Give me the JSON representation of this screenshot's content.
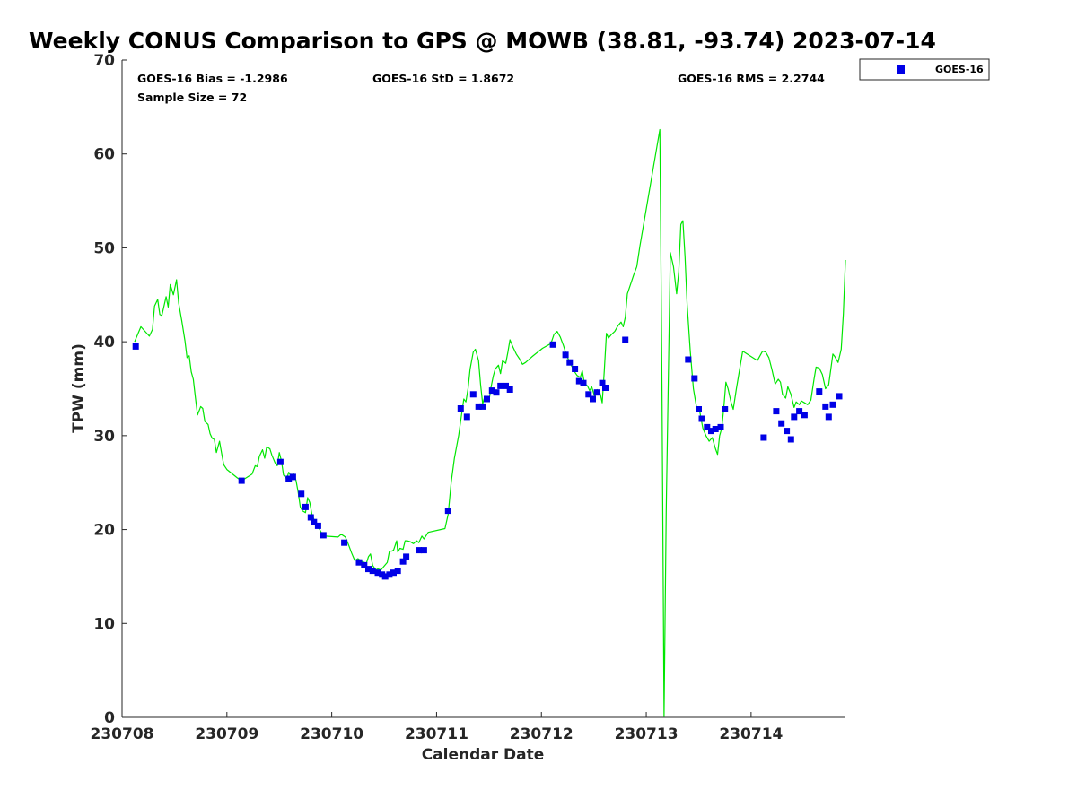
{
  "chart_data": {
    "type": "scatter",
    "title": "Weekly CONUS Comparison to GPS @ MOWB (38.81, -93.74) 2023-07-14",
    "xlabel": "Calendar Date",
    "ylabel": "TPW (mm)",
    "ylim": [
      0,
      70
    ],
    "xlim": [
      0,
      6.9
    ],
    "yticks": [
      0,
      10,
      20,
      30,
      40,
      50,
      60,
      70
    ],
    "xticks": [
      {
        "x": 0,
        "label": "230708"
      },
      {
        "x": 1,
        "label": "230709"
      },
      {
        "x": 2,
        "label": "230710"
      },
      {
        "x": 3,
        "label": "230711"
      },
      {
        "x": 4,
        "label": "230712"
      },
      {
        "x": 5,
        "label": "230713"
      },
      {
        "x": 6,
        "label": "230714"
      }
    ],
    "stats": {
      "bias": "GOES-16 Bias = -1.2986",
      "std": "GOES-16 StD = 1.8672",
      "rms": "GOES-16 RMS = 2.2744",
      "sample": "Sample Size = 72"
    },
    "legend_position": "top-right, outside plot",
    "grid": false,
    "series": [
      {
        "name": "GOES-16",
        "kind": "scatter",
        "color": "#0000e6",
        "points": [
          [
            0.13,
            39.5
          ],
          [
            1.14,
            25.2
          ],
          [
            1.51,
            27.2
          ],
          [
            1.59,
            25.4
          ],
          [
            1.63,
            25.6
          ],
          [
            1.71,
            23.8
          ],
          [
            1.75,
            22.4
          ],
          [
            1.8,
            21.3
          ],
          [
            1.83,
            20.8
          ],
          [
            1.87,
            20.4
          ],
          [
            1.92,
            19.4
          ],
          [
            2.12,
            18.6
          ],
          [
            2.26,
            16.5
          ],
          [
            2.31,
            16.2
          ],
          [
            2.35,
            15.8
          ],
          [
            2.39,
            15.6
          ],
          [
            2.44,
            15.4
          ],
          [
            2.48,
            15.2
          ],
          [
            2.51,
            15.0
          ],
          [
            2.55,
            15.2
          ],
          [
            2.59,
            15.4
          ],
          [
            2.63,
            15.6
          ],
          [
            2.68,
            16.6
          ],
          [
            2.71,
            17.1
          ],
          [
            2.83,
            17.8
          ],
          [
            2.88,
            17.8
          ],
          [
            3.11,
            22.0
          ],
          [
            3.23,
            32.9
          ],
          [
            3.29,
            32.0
          ],
          [
            3.35,
            34.4
          ],
          [
            3.4,
            33.1
          ],
          [
            3.44,
            33.1
          ],
          [
            3.48,
            33.9
          ],
          [
            3.53,
            34.8
          ],
          [
            3.57,
            34.6
          ],
          [
            3.61,
            35.3
          ],
          [
            3.66,
            35.3
          ],
          [
            3.7,
            34.9
          ],
          [
            4.11,
            39.7
          ],
          [
            4.23,
            38.6
          ],
          [
            4.27,
            37.8
          ],
          [
            4.32,
            37.1
          ],
          [
            4.36,
            35.8
          ],
          [
            4.4,
            35.6
          ],
          [
            4.45,
            34.4
          ],
          [
            4.49,
            33.9
          ],
          [
            4.53,
            34.6
          ],
          [
            4.58,
            35.6
          ],
          [
            4.61,
            35.1
          ],
          [
            4.8,
            40.2
          ],
          [
            5.4,
            38.1
          ],
          [
            5.46,
            36.1
          ],
          [
            5.5,
            32.8
          ],
          [
            5.53,
            31.8
          ],
          [
            5.58,
            30.9
          ],
          [
            5.62,
            30.5
          ],
          [
            5.66,
            30.7
          ],
          [
            5.71,
            30.9
          ],
          [
            5.75,
            32.8
          ],
          [
            6.12,
            29.8
          ],
          [
            6.24,
            32.6
          ],
          [
            6.29,
            31.3
          ],
          [
            6.34,
            30.5
          ],
          [
            6.38,
            29.6
          ],
          [
            6.41,
            32.0
          ],
          [
            6.46,
            32.6
          ],
          [
            6.51,
            32.2
          ],
          [
            6.65,
            34.7
          ],
          [
            6.71,
            33.1
          ],
          [
            6.74,
            32.0
          ],
          [
            6.78,
            33.3
          ],
          [
            6.84,
            34.2
          ]
        ]
      },
      {
        "name": "",
        "kind": "line",
        "color": "#00e600",
        "points": [
          [
            0.12,
            40.0
          ],
          [
            0.18,
            41.6
          ],
          [
            0.26,
            40.6
          ],
          [
            0.29,
            41.3
          ],
          [
            0.31,
            43.8
          ],
          [
            0.34,
            44.5
          ],
          [
            0.36,
            42.9
          ],
          [
            0.38,
            42.8
          ],
          [
            0.42,
            44.8
          ],
          [
            0.44,
            43.7
          ],
          [
            0.46,
            46.1
          ],
          [
            0.49,
            45.0
          ],
          [
            0.52,
            46.6
          ],
          [
            0.54,
            44.1
          ],
          [
            0.57,
            42.2
          ],
          [
            0.6,
            40.1
          ],
          [
            0.62,
            38.3
          ],
          [
            0.64,
            38.5
          ],
          [
            0.66,
            36.8
          ],
          [
            0.68,
            36.0
          ],
          [
            0.7,
            34.0
          ],
          [
            0.72,
            32.2
          ],
          [
            0.75,
            33.1
          ],
          [
            0.77,
            32.9
          ],
          [
            0.79,
            31.5
          ],
          [
            0.82,
            31.2
          ],
          [
            0.84,
            30.2
          ],
          [
            0.86,
            29.7
          ],
          [
            0.88,
            29.6
          ],
          [
            0.9,
            28.2
          ],
          [
            0.93,
            29.4
          ],
          [
            0.95,
            28.1
          ],
          [
            0.97,
            26.9
          ],
          [
            1.0,
            26.4
          ],
          [
            1.1,
            25.5
          ],
          [
            1.14,
            25.2
          ],
          [
            1.24,
            25.9
          ],
          [
            1.27,
            26.8
          ],
          [
            1.29,
            26.7
          ],
          [
            1.31,
            27.8
          ],
          [
            1.34,
            28.5
          ],
          [
            1.36,
            27.6
          ],
          [
            1.38,
            28.8
          ],
          [
            1.41,
            28.6
          ],
          [
            1.43,
            27.9
          ],
          [
            1.46,
            27.1
          ],
          [
            1.48,
            26.8
          ],
          [
            1.5,
            28.2
          ],
          [
            1.52,
            27.3
          ],
          [
            1.54,
            25.8
          ],
          [
            1.57,
            25.4
          ],
          [
            1.59,
            26.1
          ],
          [
            1.61,
            25.7
          ],
          [
            1.64,
            25.9
          ],
          [
            1.66,
            25.2
          ],
          [
            1.68,
            24.0
          ],
          [
            1.7,
            22.4
          ],
          [
            1.72,
            22.0
          ],
          [
            1.75,
            21.8
          ],
          [
            1.77,
            23.4
          ],
          [
            1.79,
            22.9
          ],
          [
            1.81,
            21.7
          ],
          [
            1.84,
            20.8
          ],
          [
            1.86,
            20.3
          ],
          [
            1.88,
            20.1
          ],
          [
            1.91,
            19.5
          ],
          [
            1.94,
            19.3
          ],
          [
            2.06,
            19.2
          ],
          [
            2.09,
            19.5
          ],
          [
            2.13,
            19.2
          ],
          [
            2.16,
            18.4
          ],
          [
            2.19,
            17.5
          ],
          [
            2.22,
            16.7
          ],
          [
            2.25,
            16.9
          ],
          [
            2.29,
            16.6
          ],
          [
            2.33,
            16.4
          ],
          [
            2.35,
            17.1
          ],
          [
            2.37,
            17.4
          ],
          [
            2.39,
            16.2
          ],
          [
            2.42,
            15.7
          ],
          [
            2.44,
            15.8
          ],
          [
            2.47,
            15.7
          ],
          [
            2.5,
            16.1
          ],
          [
            2.53,
            16.5
          ],
          [
            2.55,
            17.7
          ],
          [
            2.57,
            17.7
          ],
          [
            2.59,
            17.8
          ],
          [
            2.62,
            18.8
          ],
          [
            2.63,
            17.6
          ],
          [
            2.65,
            18.0
          ],
          [
            2.68,
            17.9
          ],
          [
            2.7,
            18.8
          ],
          [
            2.72,
            18.8
          ],
          [
            2.75,
            18.7
          ],
          [
            2.78,
            18.5
          ],
          [
            2.81,
            18.8
          ],
          [
            2.83,
            18.6
          ],
          [
            2.86,
            19.3
          ],
          [
            2.88,
            19.0
          ],
          [
            2.92,
            19.7
          ],
          [
            3.08,
            20.1
          ],
          [
            3.11,
            21.6
          ],
          [
            3.14,
            25.1
          ],
          [
            3.17,
            27.6
          ],
          [
            3.21,
            30.0
          ],
          [
            3.24,
            32.4
          ],
          [
            3.26,
            33.9
          ],
          [
            3.28,
            33.6
          ],
          [
            3.3,
            35.0
          ],
          [
            3.32,
            37.1
          ],
          [
            3.35,
            38.9
          ],
          [
            3.37,
            39.2
          ],
          [
            3.4,
            38.0
          ],
          [
            3.42,
            35.4
          ],
          [
            3.44,
            33.4
          ],
          [
            3.46,
            34.2
          ],
          [
            3.48,
            33.9
          ],
          [
            3.5,
            33.7
          ],
          [
            3.52,
            35.2
          ],
          [
            3.54,
            36.3
          ],
          [
            3.56,
            37.1
          ],
          [
            3.59,
            37.5
          ],
          [
            3.61,
            36.6
          ],
          [
            3.63,
            38.0
          ],
          [
            3.66,
            37.7
          ],
          [
            3.68,
            38.9
          ],
          [
            3.7,
            40.2
          ],
          [
            3.73,
            39.4
          ],
          [
            3.76,
            38.7
          ],
          [
            3.79,
            38.2
          ],
          [
            3.82,
            37.6
          ],
          [
            3.85,
            37.8
          ],
          [
            3.91,
            38.4
          ],
          [
            4.01,
            39.3
          ],
          [
            4.09,
            39.8
          ],
          [
            4.12,
            40.8
          ],
          [
            4.15,
            41.1
          ],
          [
            4.18,
            40.5
          ],
          [
            4.21,
            39.6
          ],
          [
            4.23,
            38.9
          ],
          [
            4.25,
            38.3
          ],
          [
            4.28,
            37.6
          ],
          [
            4.31,
            36.9
          ],
          [
            4.34,
            36.4
          ],
          [
            4.37,
            36.2
          ],
          [
            4.39,
            36.9
          ],
          [
            4.41,
            35.6
          ],
          [
            4.44,
            35.3
          ],
          [
            4.46,
            34.8
          ],
          [
            4.48,
            35.2
          ],
          [
            4.51,
            34.1
          ],
          [
            4.53,
            34.9
          ],
          [
            4.56,
            34.5
          ],
          [
            4.58,
            33.5
          ],
          [
            4.6,
            36.9
          ],
          [
            4.62,
            40.9
          ],
          [
            4.64,
            40.4
          ],
          [
            4.67,
            40.8
          ],
          [
            4.7,
            41.1
          ],
          [
            4.73,
            41.7
          ],
          [
            4.76,
            42.1
          ],
          [
            4.78,
            41.6
          ],
          [
            4.8,
            42.6
          ],
          [
            4.82,
            45.1
          ],
          [
            4.85,
            46.1
          ],
          [
            4.88,
            47.1
          ],
          [
            4.91,
            48.0
          ],
          [
            4.94,
            50.2
          ],
          [
            5.13,
            62.6
          ],
          [
            5.15,
            35.0
          ],
          [
            5.17,
            0.1
          ],
          [
            5.19,
            22.0
          ],
          [
            5.23,
            49.5
          ],
          [
            5.26,
            48.0
          ],
          [
            5.29,
            45.1
          ],
          [
            5.31,
            47.5
          ],
          [
            5.33,
            52.5
          ],
          [
            5.35,
            52.9
          ],
          [
            5.37,
            49.0
          ],
          [
            5.39,
            44.0
          ],
          [
            5.42,
            39.0
          ],
          [
            5.45,
            35.0
          ],
          [
            5.48,
            33.0
          ],
          [
            5.51,
            32.6
          ],
          [
            5.54,
            30.8
          ],
          [
            5.57,
            30.0
          ],
          [
            5.6,
            29.4
          ],
          [
            5.63,
            29.8
          ],
          [
            5.66,
            28.6
          ],
          [
            5.68,
            28.0
          ],
          [
            5.7,
            30.0
          ],
          [
            5.72,
            30.8
          ],
          [
            5.74,
            33.0
          ],
          [
            5.76,
            35.7
          ],
          [
            5.78,
            35.0
          ],
          [
            5.81,
            33.5
          ],
          [
            5.83,
            32.8
          ],
          [
            5.86,
            35.0
          ],
          [
            5.92,
            39.0
          ],
          [
            6.06,
            38.0
          ],
          [
            6.11,
            39.0
          ],
          [
            6.14,
            38.9
          ],
          [
            6.17,
            38.3
          ],
          [
            6.2,
            37.0
          ],
          [
            6.23,
            35.5
          ],
          [
            6.26,
            36.0
          ],
          [
            6.28,
            35.7
          ],
          [
            6.3,
            34.4
          ],
          [
            6.33,
            34.0
          ],
          [
            6.35,
            35.2
          ],
          [
            6.38,
            34.4
          ],
          [
            6.41,
            33.0
          ],
          [
            6.43,
            33.6
          ],
          [
            6.46,
            33.3
          ],
          [
            6.48,
            33.7
          ],
          [
            6.51,
            33.5
          ],
          [
            6.54,
            33.3
          ],
          [
            6.57,
            33.8
          ],
          [
            6.6,
            36.0
          ],
          [
            6.62,
            37.3
          ],
          [
            6.65,
            37.2
          ],
          [
            6.68,
            36.5
          ],
          [
            6.71,
            35.0
          ],
          [
            6.74,
            35.4
          ],
          [
            6.76,
            37.0
          ],
          [
            6.78,
            38.7
          ],
          [
            6.8,
            38.4
          ],
          [
            6.83,
            37.8
          ],
          [
            6.86,
            39.2
          ],
          [
            6.88,
            43.0
          ],
          [
            6.9,
            48.7
          ]
        ]
      }
    ]
  },
  "legend": {
    "items": [
      {
        "label": "GOES-16",
        "color": "#0000e6"
      }
    ]
  }
}
